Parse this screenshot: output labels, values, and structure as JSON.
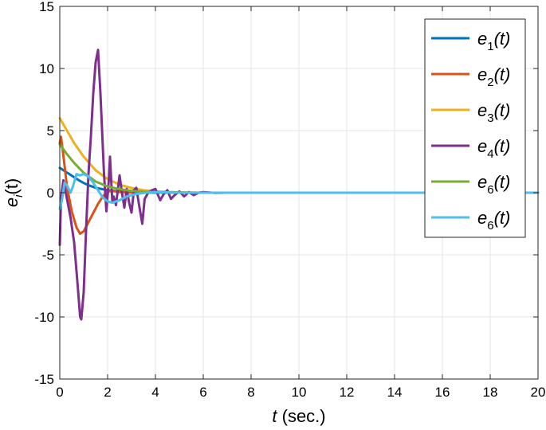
{
  "chart_data": {
    "type": "line",
    "xlabel": "t (sec.)",
    "xlabel_var": "t",
    "xlabel_unit": " (sec.)",
    "ylabel": "e_i(t)",
    "ylabel_var": "e",
    "ylabel_sub": "i",
    "ylabel_rest": "(t)",
    "xlim": [
      0,
      20
    ],
    "ylim": [
      -15,
      15
    ],
    "xticks": [
      0,
      2,
      4,
      6,
      8,
      10,
      12,
      14,
      16,
      18,
      20
    ],
    "yticks": [
      -15,
      -10,
      -5,
      0,
      5,
      10,
      15
    ],
    "grid": true,
    "legend_position": "top-right",
    "series": [
      {
        "name": "e1(t)",
        "base": "e",
        "sub": "1",
        "suffix": "(t)",
        "color": "#0072BD",
        "x": [
          0,
          0.2,
          0.4,
          0.6,
          0.8,
          1.0,
          1.2,
          1.5,
          2.0,
          2.5,
          3.0,
          4.0,
          5.0,
          6.0,
          8.0,
          20.0
        ],
        "y": [
          2.0,
          1.75,
          1.5,
          1.25,
          1.0,
          0.78,
          0.6,
          0.4,
          0.2,
          0.1,
          0.05,
          0.01,
          0,
          0,
          0,
          0
        ]
      },
      {
        "name": "e2(t)",
        "base": "e",
        "sub": "2",
        "suffix": "(t)",
        "color": "#D95319",
        "x": [
          0,
          0.05,
          0.15,
          0.3,
          0.5,
          0.7,
          0.85,
          1.0,
          1.3,
          1.6,
          1.8,
          2.0,
          2.2,
          2.5,
          3.0,
          3.5,
          4.0,
          5.0,
          20.0
        ],
        "y": [
          4.0,
          4.5,
          3.0,
          0.5,
          -1.5,
          -2.8,
          -3.3,
          -3.1,
          -2.0,
          -0.9,
          -0.3,
          0.1,
          0.15,
          0.05,
          0.02,
          0,
          0,
          0,
          0
        ]
      },
      {
        "name": "e3(t)",
        "base": "e",
        "sub": "3",
        "suffix": "(t)",
        "color": "#EDB120",
        "x": [
          0,
          0.3,
          0.6,
          1.0,
          1.5,
          2.0,
          2.5,
          3.0,
          3.5,
          4.0,
          5.0,
          6.0,
          8.0,
          20.0
        ],
        "y": [
          6.0,
          5.0,
          4.0,
          2.9,
          1.8,
          1.1,
          0.65,
          0.38,
          0.2,
          0.1,
          0.03,
          0,
          0,
          0
        ]
      },
      {
        "name": "e4(t)",
        "base": "e",
        "sub": "4",
        "suffix": "(t)",
        "color": "#7E2F8E",
        "x": [
          0,
          0.05,
          0.15,
          0.3,
          0.45,
          0.6,
          0.75,
          0.85,
          0.9,
          1.0,
          1.1,
          1.2,
          1.3,
          1.4,
          1.5,
          1.6,
          1.7,
          1.85,
          1.95,
          2.05,
          2.1,
          2.15,
          2.2,
          2.25,
          2.35,
          2.5,
          2.6,
          2.7,
          2.8,
          2.9,
          3.0,
          3.1,
          3.2,
          3.3,
          3.45,
          3.55,
          3.7,
          3.85,
          4.0,
          4.2,
          4.35,
          4.5,
          4.65,
          4.8,
          5.0,
          5.2,
          5.4,
          5.6,
          5.8,
          6.0,
          6.5,
          7.0,
          20.0
        ],
        "y": [
          -4.2,
          -0.5,
          1.0,
          -0.5,
          -2.0,
          -4.0,
          -7.5,
          -10.0,
          -10.2,
          -8.0,
          -3.0,
          1.5,
          4.5,
          8.0,
          10.5,
          11.5,
          8.0,
          1.5,
          -1.5,
          1.0,
          2.9,
          1.0,
          -0.8,
          -0.3,
          -1.0,
          1.4,
          0.0,
          -1.2,
          0.3,
          -0.8,
          -1.6,
          0.2,
          0.4,
          -0.8,
          -2.5,
          -0.5,
          0.0,
          0.2,
          0.3,
          -0.6,
          -0.1,
          0.2,
          -0.5,
          -0.2,
          0.1,
          -0.3,
          0.05,
          -0.2,
          0,
          0.05,
          -0.02,
          0,
          0
        ]
      },
      {
        "name": "e6(t)",
        "base": "e",
        "sub": "6",
        "suffix": "(t)",
        "color": "#77AC30",
        "x": [
          0,
          0.3,
          0.6,
          1.0,
          1.5,
          2.0,
          2.5,
          3.0,
          3.5,
          4.0,
          5.0,
          6.0,
          8.0,
          20.0
        ],
        "y": [
          3.9,
          3.1,
          2.4,
          1.6,
          0.9,
          0.5,
          0.28,
          0.15,
          0.08,
          0.04,
          0.01,
          0,
          0,
          0
        ]
      },
      {
        "name": "e6(t)",
        "base": "e",
        "sub": "6",
        "suffix": "(t)",
        "color": "#4DBEEE",
        "x": [
          0,
          0.1,
          0.2,
          0.3,
          0.45,
          0.55,
          0.7,
          0.85,
          1.0,
          1.2,
          1.4,
          1.6,
          1.8,
          2.0,
          2.2,
          2.5,
          2.8,
          3.2,
          3.6,
          4.0,
          5.0,
          20.0
        ],
        "y": [
          -1.3,
          -0.5,
          0.8,
          0.6,
          0.0,
          0.5,
          1.5,
          1.4,
          1.5,
          1.3,
          0.8,
          0.2,
          -0.4,
          -0.7,
          -0.8,
          -0.6,
          -0.3,
          -0.1,
          0.0,
          0.05,
          0,
          0
        ]
      }
    ]
  }
}
